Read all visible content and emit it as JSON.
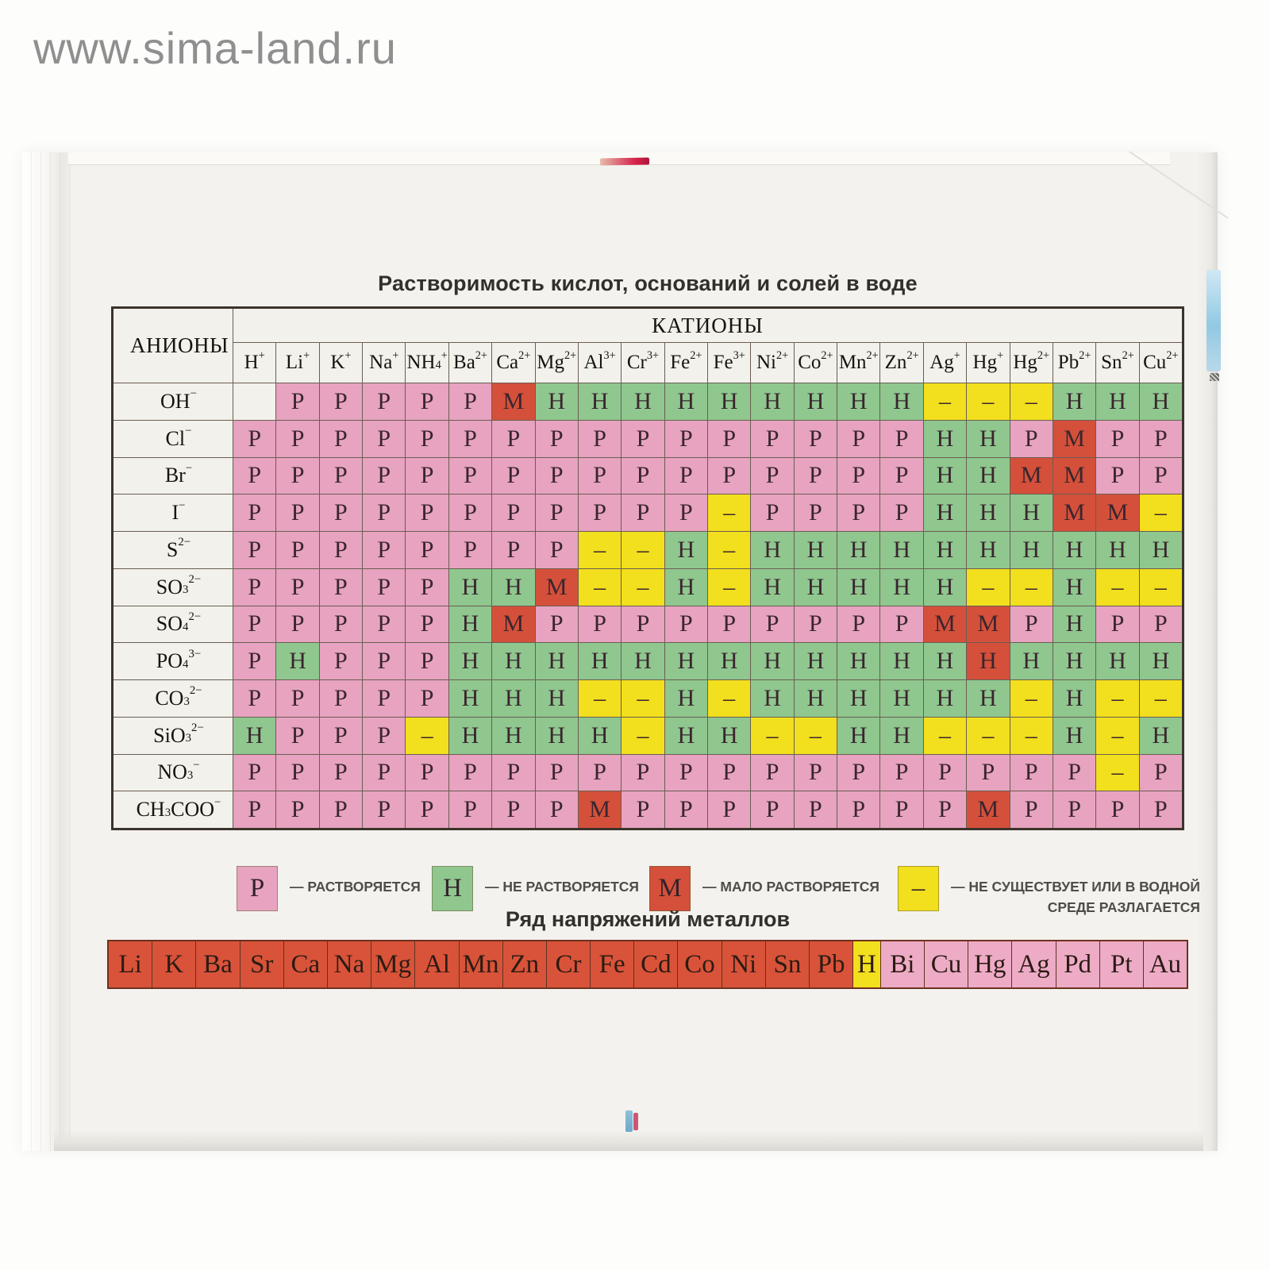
{
  "watermark": "www.sima-land.ru",
  "solubility_table": {
    "title": "Растворимость кислот, оснований и солей в воде",
    "anions_label": "АНИОНЫ",
    "cations_label": "КАТИОНЫ",
    "cations": [
      "H^{+}",
      "Li^{+}",
      "K^{+}",
      "Na^{+}",
      "NH_{4}^{+}",
      "Ba^{2+}",
      "Ca^{2+}",
      "Mg^{2+}",
      "Al^{3+}",
      "Cr^{3+}",
      "Fe^{2+}",
      "Fe^{3+}",
      "Ni^{2+}",
      "Co^{2+}",
      "Mn^{2+}",
      "Zn^{2+}",
      "Ag^{+}",
      "Hg^{+}",
      "Hg^{2+}",
      "Pb^{2+}",
      "Sn^{2+}",
      "Cu^{2+}"
    ],
    "anions": [
      "OH^{−}",
      "Cl^{−}",
      "Br^{−}",
      "I^{−}",
      "S^{2−}",
      "SO_{3}^{2−}",
      "SO_{4}^{2−}",
      "PO_{4}^{3−}",
      "CO_{3}^{2−}",
      "SiO_{3}^{2−}",
      "NO_{3}^{−}",
      "CH_{3}COO^{−}"
    ],
    "rows": [
      [
        "",
        "Р",
        "Р",
        "Р",
        "Р",
        "Р",
        "М",
        "Н",
        "Н",
        "Н",
        "Н",
        "Н",
        "Н",
        "Н",
        "Н",
        "Н",
        "–",
        "–",
        "–",
        "Н",
        "Н",
        "Н"
      ],
      [
        "Р",
        "Р",
        "Р",
        "Р",
        "Р",
        "Р",
        "Р",
        "Р",
        "Р",
        "Р",
        "Р",
        "Р",
        "Р",
        "Р",
        "Р",
        "Р",
        "Н",
        "Н",
        "Р",
        "М",
        "Р",
        "Р"
      ],
      [
        "Р",
        "Р",
        "Р",
        "Р",
        "Р",
        "Р",
        "Р",
        "Р",
        "Р",
        "Р",
        "Р",
        "Р",
        "Р",
        "Р",
        "Р",
        "Р",
        "Н",
        "Н",
        "М",
        "М",
        "Р",
        "Р"
      ],
      [
        "Р",
        "Р",
        "Р",
        "Р",
        "Р",
        "Р",
        "Р",
        "Р",
        "Р",
        "Р",
        "Р",
        "–",
        "Р",
        "Р",
        "Р",
        "Р",
        "Н",
        "Н",
        "Н",
        "М",
        "М",
        "–"
      ],
      [
        "Р",
        "Р",
        "Р",
        "Р",
        "Р",
        "Р",
        "Р",
        "Р",
        "–",
        "–",
        "Н",
        "–",
        "Н",
        "Н",
        "Н",
        "Н",
        "Н",
        "Н",
        "Н",
        "Н",
        "Н",
        "Н"
      ],
      [
        "Р",
        "Р",
        "Р",
        "Р",
        "Р",
        "Н",
        "Н",
        "М",
        "–",
        "–",
        "Н",
        "–",
        "Н",
        "Н",
        "Н",
        "Н",
        "Н",
        "–",
        "–",
        "Н",
        "–",
        "–"
      ],
      [
        "Р",
        "Р",
        "Р",
        "Р",
        "Р",
        "Н",
        "М",
        "Р",
        "Р",
        "Р",
        "Р",
        "Р",
        "Р",
        "Р",
        "Р",
        "Р",
        "М",
        "М",
        "Р",
        "Н",
        "Р",
        "Р"
      ],
      [
        "Р",
        "Н",
        "Р",
        "Р",
        "Р",
        "Н",
        "Н",
        "Н",
        "Н",
        "Н",
        "Н",
        "Н",
        "Н",
        "Н",
        "Н",
        "Н",
        "Н",
        "Н*",
        "Н",
        "Н",
        "Н",
        "Н"
      ],
      [
        "Р",
        "Р",
        "Р",
        "Р",
        "Р",
        "Н",
        "Н",
        "Н",
        "–",
        "–",
        "Н",
        "–",
        "Н",
        "Н",
        "Н",
        "Н",
        "Н",
        "Н",
        "–",
        "Н",
        "–",
        "–"
      ],
      [
        "Н",
        "Р",
        "Р",
        "Р",
        "–",
        "Н",
        "Н",
        "Н",
        "Н",
        "–",
        "Н",
        "Н",
        "–",
        "–",
        "Н",
        "Н",
        "–",
        "–",
        "–",
        "Н",
        "–",
        "Н"
      ],
      [
        "Р",
        "Р",
        "Р",
        "Р",
        "Р",
        "Р",
        "Р",
        "Р",
        "Р",
        "Р",
        "Р",
        "Р",
        "Р",
        "Р",
        "Р",
        "Р",
        "Р",
        "Р",
        "Р",
        "Р",
        "–",
        "Р"
      ],
      [
        "Р",
        "Р",
        "Р",
        "Р",
        "Р",
        "Р",
        "Р",
        "Р",
        "М",
        "Р",
        "Р",
        "Р",
        "Р",
        "Р",
        "Р",
        "Р",
        "Р",
        "М",
        "Р",
        "Р",
        "Р",
        "Р"
      ]
    ],
    "cell_colors": {
      "Р": "#e7a3c0",
      "Н": "#8fc78f",
      "М": "#d4503a",
      "–": "#f2df1d",
      "": "#f2f1ec"
    },
    "special_cells": [
      {
        "anion": "PO_{4}^{3−}",
        "cation": "Hg^{+}",
        "value": "Н",
        "background": "#d4503a"
      }
    ],
    "legend": [
      {
        "symbol": "Р",
        "label": "— РАСТВОРЯЕТСЯ"
      },
      {
        "symbol": "Н",
        "label": "— НЕ РАСТВОРЯЕТСЯ"
      },
      {
        "symbol": "М",
        "label": "— МАЛО РАСТВОРЯЕТСЯ"
      },
      {
        "symbol": "–",
        "label": "— НЕ СУЩЕСТВУЕТ ИЛИ В ВОДНОЙ",
        "label2": "СРЕДЕ РАЗЛАГАЕТСЯ"
      }
    ]
  },
  "activity_series": {
    "title": "Ряд напряжений металлов",
    "metals": [
      "Li",
      "K",
      "Ba",
      "Sr",
      "Ca",
      "Na",
      "Mg",
      "Al",
      "Mn",
      "Zn",
      "Cr",
      "Fe",
      "Cd",
      "Co",
      "Ni",
      "Sn",
      "Pb",
      "H",
      "Bi",
      "Cu",
      "Hg",
      "Ag",
      "Pd",
      "Pt",
      "Au"
    ],
    "hydrogen_index": 17,
    "group_colors": {
      "active": "#d85339",
      "hydrogen": "#f2df1d",
      "after_hydrogen": "#edabc6"
    }
  }
}
